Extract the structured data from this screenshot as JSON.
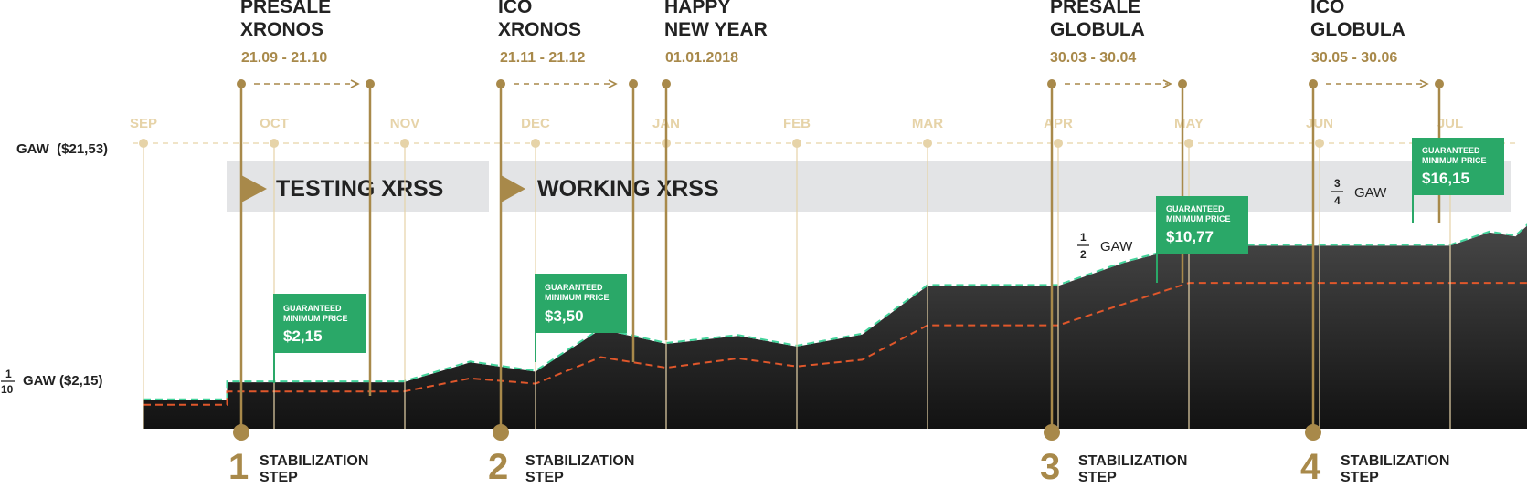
{
  "colors": {
    "gold": "#a8894a",
    "light_gold": "#e6d3a8",
    "band": "#e3e4e6",
    "area_top": "#4a4a4a",
    "area_bottom": "#121212",
    "green": "#2aa868",
    "green_line": "#43d39b",
    "orange_line": "#e0572b",
    "text_dark": "#222222",
    "white": "#ffffff"
  },
  "price_labels": {
    "top": "GAW  ($21,53)",
    "bottom_num": "1",
    "bottom_den": "10",
    "bottom_text": "GAW ($2,15)"
  },
  "events": [
    {
      "line1": "PRESALE",
      "line2": "XRONOS",
      "dates": "21.09 - 21.10"
    },
    {
      "line1": "ICO",
      "line2": "XRONOS",
      "dates": "21.11 - 21.12"
    },
    {
      "line1": "HAPPY",
      "line2": "NEW YEAR",
      "dates": "01.01.2018"
    },
    {
      "line1": "PRESALE",
      "line2": "GLOBULA",
      "dates": "30.03 - 30.04"
    },
    {
      "line1": "ICO",
      "line2": "GLOBULA",
      "dates": "30.05 - 30.06"
    }
  ],
  "bands": [
    {
      "label": "TESTING XRSS"
    },
    {
      "label": "WORKING XRSS"
    }
  ],
  "fraction_labels": [
    {
      "num": "1",
      "den": "2",
      "text": "GAW"
    },
    {
      "num": "3",
      "den": "4",
      "text": "GAW"
    }
  ],
  "guarantee_boxes": [
    {
      "line1": "GUARANTEED",
      "line2": "MINIMUM PRICE",
      "value": "$2,15"
    },
    {
      "line1": "GUARANTEED",
      "line2": "MINIMUM PRICE",
      "value": "$3,50"
    },
    {
      "line1": "GUARANTEED",
      "line2": "MINIMUM PRICE",
      "value": "$10,77"
    },
    {
      "line1": "GUARANTEED",
      "line2": "MINIMUM PRICE",
      "value": "$16,15"
    }
  ],
  "steps": [
    {
      "num": "1",
      "line1": "STABILIZATION",
      "line2": "STEP"
    },
    {
      "num": "2",
      "line1": "STABILIZATION",
      "line2": "STEP"
    },
    {
      "num": "3",
      "line1": "STABILIZATION",
      "line2": "STEP"
    },
    {
      "num": "4",
      "line1": "STABILIZATION",
      "line2": "STEP"
    }
  ],
  "chart_data": {
    "type": "area",
    "x_ticks": [
      "SEP",
      "OCT",
      "NOV",
      "DEC",
      "JAN",
      "FEB",
      "MAR",
      "APR",
      "MAY",
      "JUN",
      "JUL"
    ],
    "x": [
      0,
      0.64,
      0.64,
      1,
      1.99,
      2.5,
      3,
      3.5,
      4,
      4.55,
      5,
      5.5,
      6,
      6.5,
      6.91,
      7,
      7.5,
      8,
      8.5,
      9,
      9.5,
      10,
      10.3,
      10.5,
      10.68
    ],
    "series": [
      {
        "values": [
          2.15,
          2.15,
          3.5,
          3.5,
          3.5,
          5.0,
          4.3,
          7.5,
          6.4,
          7.0,
          6.2,
          7.1,
          10.77,
          10.77,
          10.77,
          10.77,
          12.5,
          13.8,
          13.8,
          13.8,
          13.8,
          13.8,
          14.8,
          14.5,
          16.15
        ]
      }
    ],
    "guaranteed_min_series": [
      {
        "values": [
          2.15,
          2.15,
          3.5,
          3.5,
          3.5,
          5.0,
          4.3,
          7.5,
          6.4,
          7.0,
          6.2,
          7.1,
          10.77,
          10.77,
          10.77,
          10.77,
          12.5,
          13.8,
          13.8,
          13.8,
          13.8,
          13.8,
          14.8,
          14.5,
          16.15
        ]
      }
    ],
    "orange_series": [
      {
        "values": [
          1.8,
          1.8,
          2.8,
          2.8,
          2.8,
          3.8,
          3.4,
          5.4,
          4.6,
          5.3,
          4.7,
          5.2,
          7.8,
          7.8,
          7.8,
          7.8,
          9.4,
          11.0,
          11.0,
          11.0,
          11.0,
          11.0,
          11.0,
          11.0,
          11.0
        ]
      }
    ],
    "ylim": [
      0,
      21.53
    ]
  }
}
